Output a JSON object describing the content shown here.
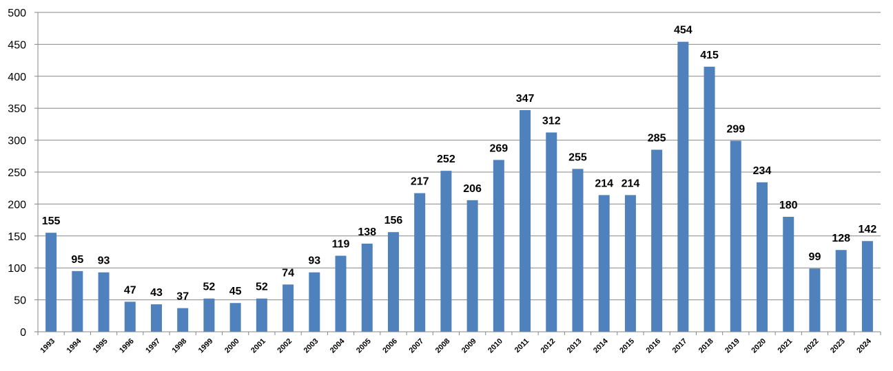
{
  "chart_data": {
    "type": "bar",
    "title": "",
    "xlabel": "",
    "ylabel": "",
    "ylim": [
      0,
      500
    ],
    "yticks": [
      0,
      50,
      100,
      150,
      200,
      250,
      300,
      350,
      400,
      450,
      500
    ],
    "grid": true,
    "legend": "none",
    "bar_color": "#4F81BD",
    "categories": [
      "1993",
      "1994",
      "1995",
      "1996",
      "1997",
      "1998",
      "1999",
      "2000",
      "2001",
      "2002",
      "2003",
      "2004",
      "2005",
      "2006",
      "2007",
      "2008",
      "2009",
      "2010",
      "2011",
      "2012",
      "2013",
      "2014",
      "2015",
      "2016",
      "2017",
      "2018",
      "2019",
      "2020",
      "2021",
      "2022",
      "2023",
      "2024"
    ],
    "values": [
      155,
      95,
      93,
      47,
      43,
      37,
      52,
      45,
      52,
      74,
      93,
      119,
      138,
      156,
      217,
      252,
      206,
      269,
      347,
      312,
      255,
      214,
      214,
      285,
      454,
      415,
      299,
      234,
      180,
      99,
      128,
      142
    ]
  }
}
